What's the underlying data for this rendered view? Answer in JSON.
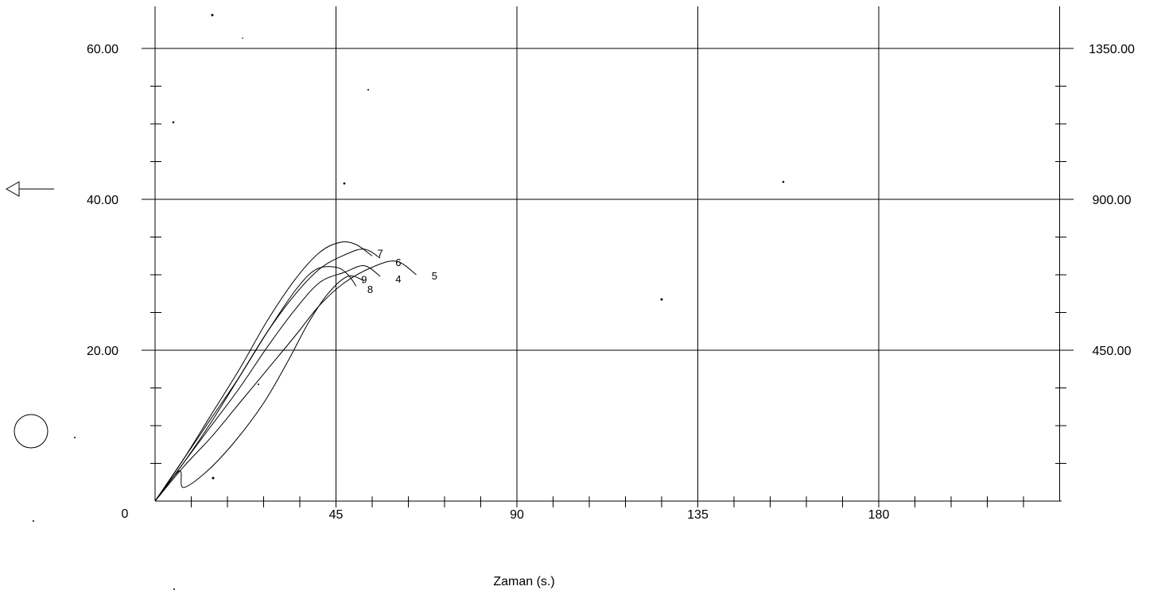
{
  "chart_data": {
    "type": "line",
    "title": "",
    "xlabel": "Zaman (s.)",
    "ylabel": "",
    "xlim": [
      0,
      225
    ],
    "ylim": [
      0,
      60
    ],
    "y2lim": [
      0,
      1350
    ],
    "x_ticks": [
      "45",
      "90",
      "135",
      "180"
    ],
    "x_tick_values": [
      45,
      90,
      135,
      180
    ],
    "y_ticks": [
      "0",
      "20.00",
      "40.00",
      "60.00"
    ],
    "y_tick_values": [
      0,
      20,
      40,
      60
    ],
    "y2_ticks": [
      "450.00",
      "900.00",
      "1350.00"
    ],
    "y2_tick_values": [
      450,
      900,
      1350
    ],
    "grid": true,
    "legend_markers": [
      "left-arrow-marker",
      "circle-marker"
    ],
    "series": [
      {
        "name": "7",
        "x": [
          0,
          7,
          14,
          21,
          28,
          35,
          41,
          46,
          50,
          54
        ],
        "y": [
          0,
          5.5,
          11.5,
          17.5,
          24,
          29.5,
          33,
          34.3,
          34,
          32.5
        ]
      },
      {
        "name": "6",
        "x": [
          0,
          7,
          14,
          21,
          28,
          35,
          41,
          47,
          52,
          56
        ],
        "y": [
          0,
          5,
          10.5,
          16.5,
          22.5,
          27.5,
          30.8,
          32.6,
          33.4,
          32.2
        ]
      },
      {
        "name": "5",
        "x": [
          0,
          7,
          14,
          21,
          28,
          35,
          41,
          47,
          54,
          60,
          65
        ],
        "y": [
          0,
          4.5,
          8.5,
          13,
          17.5,
          22,
          26,
          28.9,
          31,
          31.8,
          30
        ]
      },
      {
        "name": "4",
        "x": [
          0,
          7,
          14,
          21,
          28,
          35,
          41,
          47,
          52,
          56
        ],
        "y": [
          0,
          5,
          10,
          15,
          20.5,
          25.5,
          29,
          30.3,
          31.2,
          29.8
        ]
      },
      {
        "name": "9",
        "x": [
          0,
          7,
          14,
          21,
          28,
          35,
          40,
          45,
          48,
          50
        ],
        "y": [
          0,
          5.5,
          11,
          16.5,
          22.5,
          28,
          30.7,
          31,
          30,
          28.5
        ]
      },
      {
        "name": "8",
        "x": [
          0,
          6,
          7,
          13,
          20,
          27,
          33,
          38,
          43,
          48,
          52
        ],
        "y": [
          0,
          4,
          1.8,
          4,
          8,
          13,
          18.5,
          23.5,
          27.5,
          29.8,
          29.2
        ]
      }
    ],
    "label_positions": [
      {
        "name": "7",
        "x": 56,
        "y": 32.9
      },
      {
        "name": "6",
        "x": 60.5,
        "y": 31.7
      },
      {
        "name": "5",
        "x": 69.5,
        "y": 29.9
      },
      {
        "name": "4",
        "x": 60.5,
        "y": 29.5
      },
      {
        "name": "9",
        "x": 52,
        "y": 29.4
      },
      {
        "name": "8",
        "x": 53.5,
        "y": 28.1
      }
    ]
  }
}
